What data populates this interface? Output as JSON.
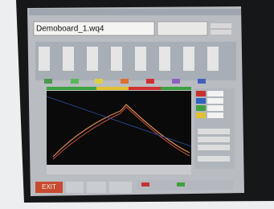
{
  "window": {
    "file_name": "Demoboard_1.wq4"
  },
  "buttons": {
    "exit": "EXIT"
  }
}
